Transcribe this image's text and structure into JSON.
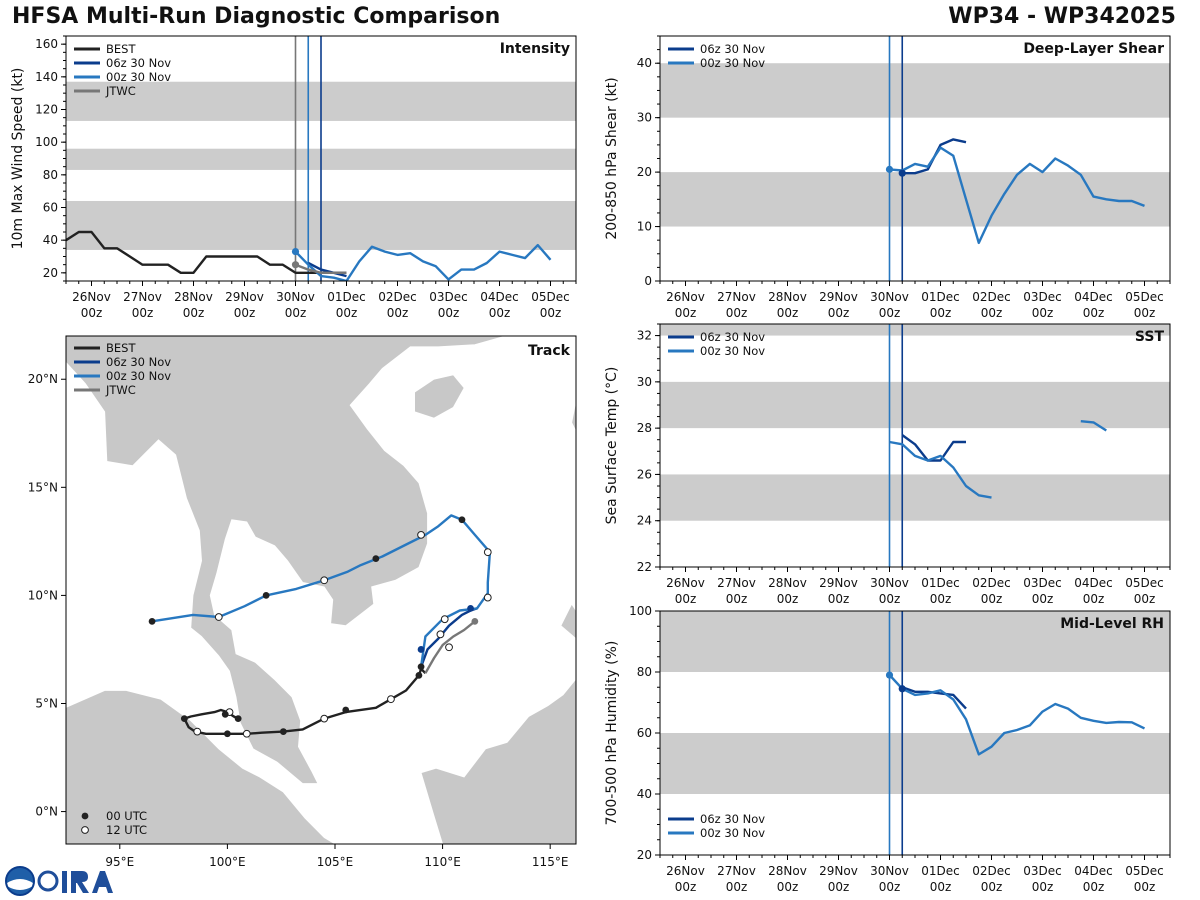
{
  "header": {
    "title_left": "HFSA Multi-Run Diagnostic Comparison",
    "title_right": "WP34 - WP342025"
  },
  "logo": {
    "text": "CIRA",
    "emblem": "noaa-seal-icon"
  },
  "colors": {
    "best": "#222222",
    "run06": "#0b3c8c",
    "run00": "#2878c0",
    "jtwc": "#777777",
    "band": "#cccccc",
    "land": "#c8c8c8"
  },
  "time_ticks": [
    "26Nov\n00z",
    "27Nov\n00z",
    "28Nov\n00z",
    "29Nov\n00z",
    "30Nov\n00z",
    "01Dec\n00z",
    "02Dec\n00z",
    "03Dec\n00z",
    "04Dec\n00z",
    "05Dec\n00z"
  ],
  "chart_data": [
    {
      "id": "intensity",
      "type": "line",
      "title": "Intensity",
      "ylabel": "10m Max Wind Speed (kt)",
      "x_units": "days since 26Nov 00z",
      "xlim": [
        -0.5,
        9.5
      ],
      "ylim": [
        15,
        165
      ],
      "yticks": [
        20,
        40,
        60,
        80,
        100,
        120,
        140,
        160
      ],
      "bands": [
        [
          34,
          64
        ],
        [
          83,
          96
        ],
        [
          113,
          137
        ]
      ],
      "vlines": [
        {
          "x": 4.0,
          "color": "jtwc"
        },
        {
          "x": 4.25,
          "color": "run00"
        },
        {
          "x": 4.5,
          "color": "run06"
        }
      ],
      "series": [
        {
          "name": "BEST",
          "color": "best",
          "x": [
            -0.5,
            -0.25,
            0,
            0.25,
            0.5,
            0.75,
            1,
            1.25,
            1.5,
            1.75,
            2,
            2.25,
            2.5,
            2.75,
            3,
            3.25,
            3.5,
            3.75,
            4,
            4.25,
            4.5,
            4.75,
            5
          ],
          "y": [
            40,
            45,
            45,
            35,
            35,
            30,
            25,
            25,
            25,
            20,
            20,
            30,
            30,
            30,
            30,
            30,
            25,
            25,
            20,
            20,
            20,
            20,
            20
          ]
        },
        {
          "name": "06z 30 Nov",
          "color": "run06",
          "x": [
            4.25,
            4.5,
            4.75,
            5.0
          ],
          "y": [
            26,
            22,
            20,
            18
          ]
        },
        {
          "name": "00z 30 Nov",
          "color": "run00",
          "x": [
            4,
            4.25,
            4.5,
            4.75,
            5,
            5.25,
            5.5,
            5.75,
            6,
            6.25,
            6.5,
            6.75,
            7,
            7.25,
            7.5,
            7.75,
            8,
            8.25,
            8.5,
            8.75,
            9
          ],
          "y": [
            33,
            25,
            18,
            17,
            15,
            27,
            36,
            33,
            31,
            32,
            27,
            24,
            16,
            22,
            22,
            26,
            33,
            31,
            29,
            37,
            28
          ]
        },
        {
          "name": "JTWC",
          "color": "jtwc",
          "x": [
            4,
            4.25,
            4.5,
            4.75,
            5.0
          ],
          "y": [
            25,
            22,
            20,
            20,
            20
          ]
        }
      ],
      "markers": [
        {
          "x": 4.0,
          "y": 33,
          "color": "run00"
        },
        {
          "x": 4.0,
          "y": 25,
          "color": "jtwc"
        }
      ]
    },
    {
      "id": "shear",
      "type": "line",
      "title": "Deep-Layer Shear",
      "ylabel": "200-850 hPa Shear (kt)",
      "x_units": "days since 26Nov 00z",
      "xlim": [
        -0.5,
        9.5
      ],
      "ylim": [
        0,
        45
      ],
      "yticks": [
        0,
        10,
        20,
        30,
        40
      ],
      "bands": [
        [
          10,
          20
        ],
        [
          30,
          40
        ]
      ],
      "vlines": [
        {
          "x": 4.0,
          "color": "run00"
        },
        {
          "x": 4.25,
          "color": "run06"
        }
      ],
      "series": [
        {
          "name": "06z 30 Nov",
          "color": "run06",
          "x": [
            4.25,
            4.5,
            4.75,
            5,
            5.25,
            5.5
          ],
          "y": [
            19.8,
            19.8,
            20.5,
            25,
            26,
            25.5
          ]
        },
        {
          "name": "00z 30 Nov",
          "color": "run00",
          "x": [
            4,
            4.25,
            4.5,
            4.75,
            5,
            5.25,
            5.5,
            5.75,
            6,
            6.25,
            6.5,
            6.75,
            7,
            7.25,
            7.5,
            7.75,
            8,
            8.25,
            8.5,
            8.75,
            9
          ],
          "y": [
            20.5,
            20.3,
            21.5,
            21,
            24.5,
            23,
            15,
            7,
            12,
            16,
            19.5,
            21.5,
            20,
            22.5,
            21.2,
            19.5,
            15.5,
            15,
            14.7,
            14.7,
            13.8
          ]
        }
      ],
      "markers": [
        {
          "x": 4.0,
          "y": 20.5,
          "color": "run00"
        },
        {
          "x": 4.25,
          "y": 19.8,
          "color": "run06"
        }
      ]
    },
    {
      "id": "sst",
      "type": "line",
      "title": "SST",
      "ylabel": "Sea Surface Temp (°C)",
      "x_units": "days since 26Nov 00z",
      "xlim": [
        -0.5,
        9.5
      ],
      "ylim": [
        22,
        32.5
      ],
      "yticks": [
        22,
        24,
        26,
        28,
        30,
        32
      ],
      "bands": [
        [
          24,
          26
        ],
        [
          28,
          30
        ],
        [
          32,
          32.5
        ]
      ],
      "vlines": [
        {
          "x": 4.0,
          "color": "run00"
        },
        {
          "x": 4.25,
          "color": "run06"
        }
      ],
      "series": [
        {
          "name": "06z 30 Nov",
          "color": "run06",
          "x": [
            4.25,
            4.5,
            4.75,
            5,
            5.25,
            5.5
          ],
          "y": [
            27.7,
            27.3,
            26.6,
            26.6,
            27.4,
            27.4
          ]
        },
        {
          "name": "00z 30 Nov",
          "color": "run00",
          "x": [
            4,
            4.25,
            4.5,
            4.75,
            5,
            5.25,
            5.5,
            5.75,
            6
          ],
          "y": [
            27.4,
            27.3,
            26.8,
            26.6,
            26.8,
            26.3,
            25.5,
            25.1,
            25.0
          ]
        },
        {
          "name": "00z 30 Nov",
          "color": "run00",
          "x": [
            7.75,
            8,
            8.25
          ],
          "y": [
            28.3,
            28.25,
            27.9
          ]
        }
      ],
      "markers": []
    },
    {
      "id": "rh",
      "type": "line",
      "title": "Mid-Level RH",
      "ylabel": "700-500 hPa Humidity (%)",
      "x_units": "days since 26Nov 00z",
      "xlim": [
        -0.5,
        9.5
      ],
      "ylim": [
        20,
        100
      ],
      "yticks": [
        20,
        40,
        60,
        80,
        100
      ],
      "bands": [
        [
          40,
          60
        ],
        [
          80,
          100
        ]
      ],
      "vlines": [
        {
          "x": 4.0,
          "color": "run00"
        },
        {
          "x": 4.25,
          "color": "run06"
        }
      ],
      "series": [
        {
          "name": "06z 30 Nov",
          "color": "run06",
          "x": [
            4.25,
            4.5,
            4.75,
            5,
            5.25,
            5.5
          ],
          "y": [
            75,
            73.5,
            73.5,
            73,
            72.5,
            68
          ]
        },
        {
          "name": "00z 30 Nov",
          "color": "run00",
          "x": [
            4,
            4.25,
            4.5,
            4.75,
            5,
            5.25,
            5.5,
            5.75,
            6,
            6.25,
            6.5,
            6.75,
            7,
            7.25,
            7.5,
            7.75,
            8,
            8.25,
            8.5,
            8.75,
            9
          ],
          "y": [
            79,
            74.5,
            72.5,
            73,
            74,
            71,
            64.5,
            53,
            55.5,
            60,
            61,
            62.5,
            67,
            69.5,
            68,
            65,
            64,
            63.3,
            63.6,
            63.5,
            61.5
          ]
        }
      ],
      "markers": [
        {
          "x": 4.0,
          "y": 79,
          "color": "run00"
        },
        {
          "x": 4.25,
          "y": 74.5,
          "color": "run06"
        }
      ]
    },
    {
      "id": "track",
      "type": "scatter",
      "title": "Track",
      "xlim": [
        92.5,
        116.2
      ],
      "ylim": [
        -1.5,
        22
      ],
      "xticks": [
        95,
        100,
        105,
        110,
        115
      ],
      "xtick_labels": [
        "95°E",
        "100°E",
        "105°E",
        "110°E",
        "115°E"
      ],
      "yticks": [
        0,
        5,
        10,
        15,
        20
      ],
      "ytick_labels": [
        "0°N",
        "5°N",
        "10°N",
        "15°N",
        "20°N"
      ],
      "series": [
        {
          "name": "BEST",
          "color": "best",
          "lon": [
            100.5,
            100.3,
            100.0,
            99.7,
            99.4,
            98.8,
            98.3,
            98.0,
            98.2,
            98.5,
            99.0,
            100.0,
            100.9,
            101.6,
            102.6,
            103.5,
            104.5,
            105.5,
            106.9,
            107.6,
            108.3,
            108.9,
            109.0,
            109.2
          ],
          "lat": [
            4.3,
            4.4,
            4.6,
            4.7,
            4.6,
            4.5,
            4.4,
            4.3,
            3.9,
            3.7,
            3.6,
            3.6,
            3.6,
            3.65,
            3.7,
            3.8,
            4.3,
            4.6,
            4.8,
            5.2,
            5.6,
            6.3,
            6.6,
            6.4
          ],
          "pts00": [
            [
              100.5,
              4.3
            ],
            [
              99.9,
              4.5
            ],
            [
              98.0,
              4.3
            ],
            [
              100.0,
              3.6
            ],
            [
              102.6,
              3.7
            ],
            [
              105.5,
              4.7
            ],
            [
              108.9,
              6.3
            ]
          ],
          "pts12": [
            [
              100.1,
              4.6
            ],
            [
              98.6,
              3.7
            ],
            [
              100.9,
              3.6
            ],
            [
              104.5,
              4.3
            ],
            [
              107.6,
              5.2
            ]
          ]
        },
        {
          "name": "06z 30 Nov",
          "color": "run06",
          "lon": [
            109.0,
            109.3,
            109.8,
            110.3,
            110.9,
            111.3,
            111.6
          ],
          "lat": [
            6.7,
            7.5,
            8.0,
            8.6,
            9.1,
            9.3,
            9.4
          ],
          "pts00": [
            [
              109.0,
              7.5
            ],
            [
              111.3,
              9.4
            ]
          ],
          "pts12": [
            [
              109.9,
              8.2
            ]
          ]
        },
        {
          "name": "00z 30 Nov",
          "color": "run00",
          "lon": [
            109.0,
            109.2,
            110.0,
            110.8,
            111.6,
            112.1,
            112.1,
            112.2,
            111.5,
            110.9,
            110.4,
            109.8,
            109.2,
            108.4,
            107.2,
            106.2,
            105.6,
            104.5,
            103.2,
            101.8,
            100.8,
            99.6,
            98.4,
            96.5
          ],
          "lat": [
            6.7,
            8.1,
            8.9,
            9.3,
            9.4,
            10.1,
            10.6,
            12.0,
            12.8,
            13.5,
            13.7,
            13.2,
            12.8,
            12.4,
            11.8,
            11.4,
            11.1,
            10.7,
            10.3,
            10.0,
            9.5,
            9.0,
            9.1,
            8.8
          ],
          "pts00": [
            [
              109.0,
              6.7
            ],
            [
              110.9,
              13.5
            ],
            [
              106.9,
              11.7
            ],
            [
              101.8,
              10.0
            ],
            [
              96.5,
              8.8
            ]
          ],
          "pts12": [
            [
              110.1,
              8.9
            ],
            [
              112.1,
              9.9
            ],
            [
              112.1,
              12.0
            ],
            [
              109.0,
              12.8
            ],
            [
              104.5,
              10.7
            ],
            [
              99.6,
              9.0
            ]
          ]
        },
        {
          "name": "JTWC",
          "color": "jtwc",
          "lon": [
            109.2,
            109.6,
            110.0,
            110.5,
            111.0,
            111.5
          ],
          "lat": [
            6.4,
            7.1,
            7.7,
            8.1,
            8.4,
            8.8
          ],
          "pts00": [
            [
              111.5,
              8.8
            ]
          ],
          "pts12": [
            [
              110.3,
              7.6
            ]
          ]
        }
      ],
      "marker_legend": [
        "00 UTC",
        "12 UTC"
      ]
    }
  ]
}
